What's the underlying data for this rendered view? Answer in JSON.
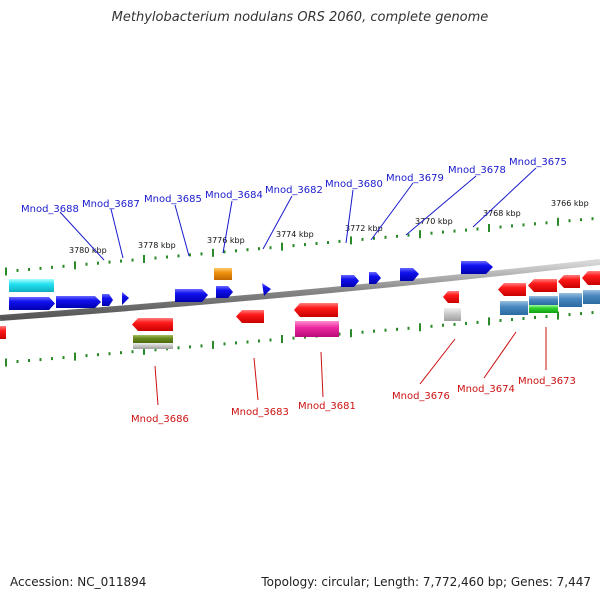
{
  "title": "Methylobacterium nodulans ORS 2060, complete genome",
  "accession_text": "Accession: NC_011894",
  "summary_text": "Topology: circular; Length: 7,772,460 bp; Genes: 7,447",
  "colors": {
    "forward_label": "#1a1acc",
    "reverse_label": "#cc1111",
    "forward_gene": "#0000ee",
    "reverse_gene": "#ee0000",
    "backbone": "#888888",
    "ticks": "#2a8a2a"
  },
  "scale_labels": [
    "3766 kbp",
    "3768 kbp",
    "3770 kbp",
    "3772 kbp",
    "3774 kbp",
    "3776 kbp",
    "3778 kbp",
    "3780 kbp"
  ],
  "forward_gene_labels": [
    "Mnod_3688",
    "Mnod_3687",
    "Mnod_3685",
    "Mnod_3684",
    "Mnod_3682",
    "Mnod_3680",
    "Mnod_3679",
    "Mnod_3678",
    "Mnod_3675"
  ],
  "reverse_gene_labels": [
    "Mnod_3686",
    "Mnod_3683",
    "Mnod_3681",
    "Mnod_3676",
    "Mnod_3674",
    "Mnod_3673"
  ]
}
